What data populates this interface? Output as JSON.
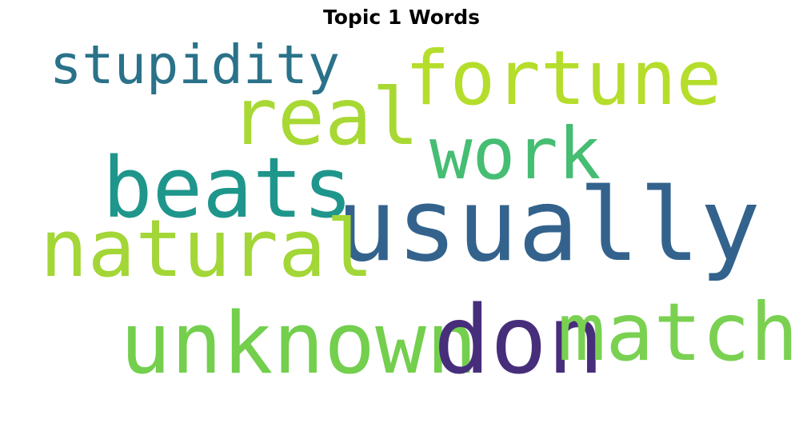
{
  "title": "Topic 1 Words",
  "words": [
    {
      "text": "stupidity",
      "color": "#2a7289"
    },
    {
      "text": "fortune",
      "color": "#b5dd2b"
    },
    {
      "text": "real",
      "color": "#a8d833"
    },
    {
      "text": "work",
      "color": "#45bd72"
    },
    {
      "text": "beats",
      "color": "#1f968b"
    },
    {
      "text": "usually",
      "color": "#33638d"
    },
    {
      "text": "natural",
      "color": "#a3d637"
    },
    {
      "text": "unknown",
      "color": "#73cf4d"
    },
    {
      "text": "don",
      "color": "#472e7b"
    },
    {
      "text": "match",
      "color": "#7ad151"
    }
  ]
}
